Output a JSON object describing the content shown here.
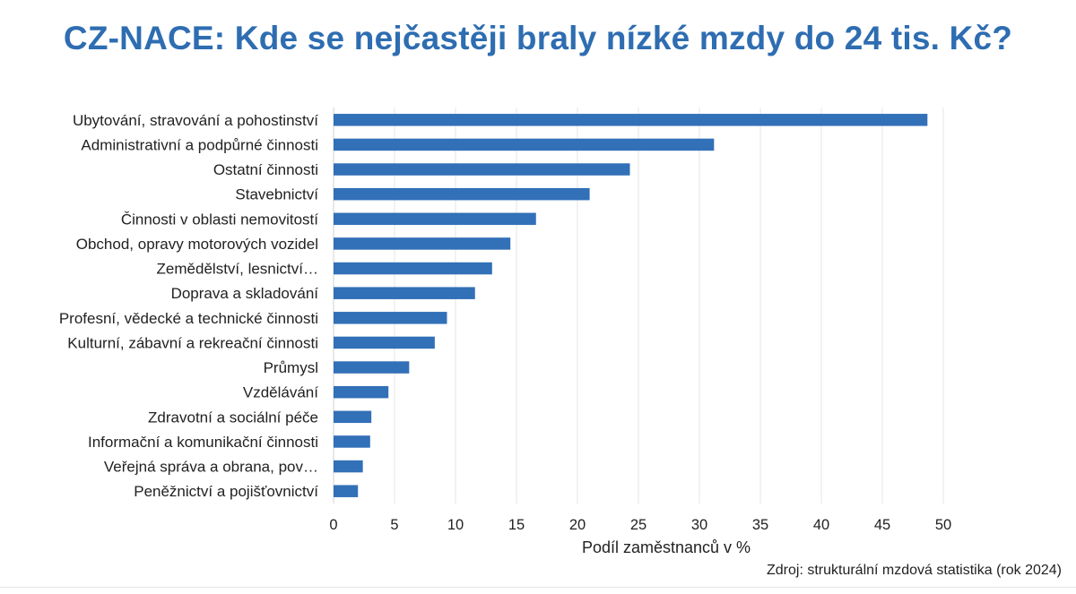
{
  "chart_data": {
    "type": "bar",
    "orientation": "horizontal",
    "title": "CZ-NACE: Kde se nejčastěji braly nízké mzdy do 24 tis. Kč?",
    "xlabel": "Podíl zaměstnanců v %",
    "ylabel": "",
    "xlim": [
      0,
      50
    ],
    "xticks": [
      "0",
      "5",
      "10",
      "15",
      "20",
      "25",
      "30",
      "35",
      "40",
      "45",
      "50"
    ],
    "grid": "vertical",
    "legend": "none",
    "color": "#3270b8",
    "categories": [
      "Ubytování, stravování a pohostinství",
      "Administrativní a podpůrné činnosti",
      "Ostatní činnosti",
      "Stavebnictví",
      "Činnosti v oblasti nemovitostí",
      "Obchod, opravy motorových vozidel",
      "Zemědělství, lesnictví…",
      "Doprava a skladování",
      "Profesní, vědecké a technické činnosti",
      "Kulturní, zábavní a rekreační činnosti",
      "Průmysl",
      "Vzdělávání",
      "Zdravotní a sociální péče",
      "Informační a komunikační činnosti",
      "Veřejná správa a obrana, pov…",
      "Peněžnictví a pojišťovnictví"
    ],
    "values": [
      48.7,
      31.2,
      24.3,
      21.0,
      16.6,
      14.5,
      13.0,
      11.6,
      9.3,
      8.3,
      6.2,
      4.5,
      3.1,
      3.0,
      2.4,
      2.0
    ]
  },
  "source": "Zdroj: strukturální mzdová statistika (rok 2024)"
}
